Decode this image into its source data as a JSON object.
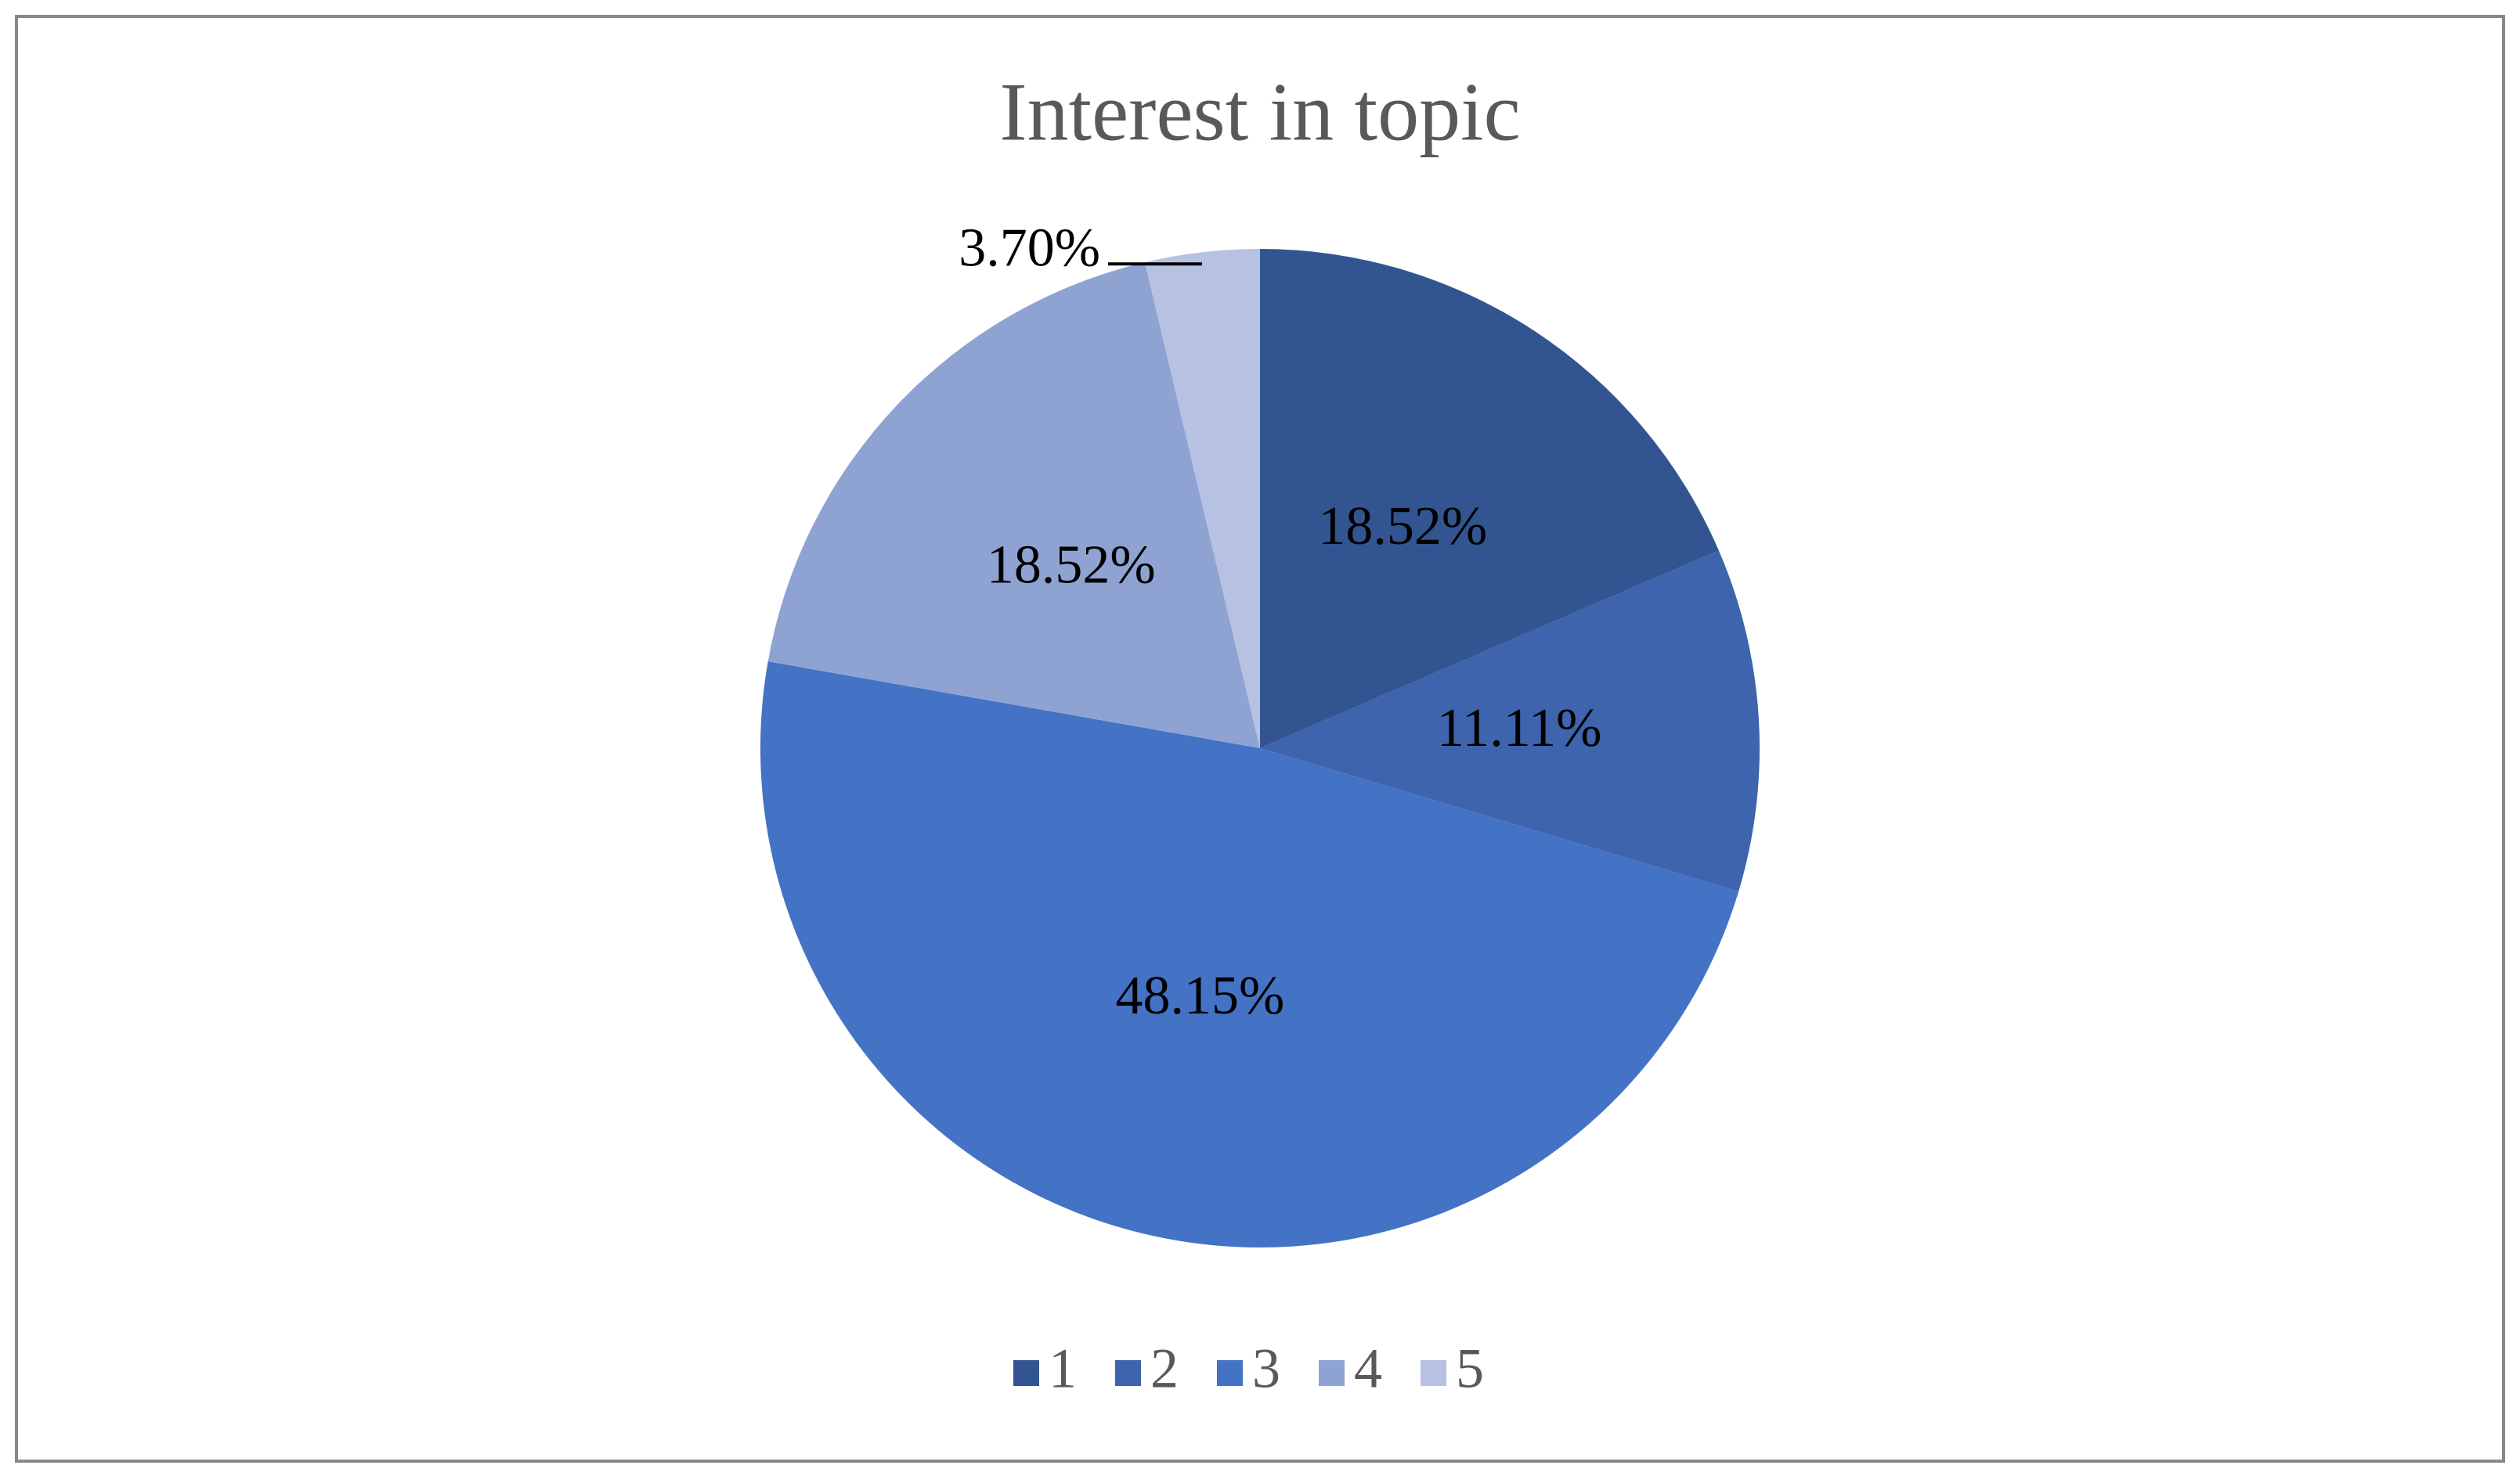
{
  "chart_data": {
    "type": "pie",
    "title": "Interest in topic",
    "categories": [
      "1",
      "2",
      "3",
      "4",
      "5"
    ],
    "values": [
      18.52,
      11.11,
      48.15,
      18.52,
      3.7
    ],
    "value_labels": [
      "18.52%",
      "11.11%",
      "48.15%",
      "18.52%",
      "3.70%"
    ],
    "colors": [
      "#325591",
      "#3d64ac",
      "#4472c4",
      "#8fa3d3",
      "#b7c2e2"
    ],
    "legend": "bottom"
  }
}
